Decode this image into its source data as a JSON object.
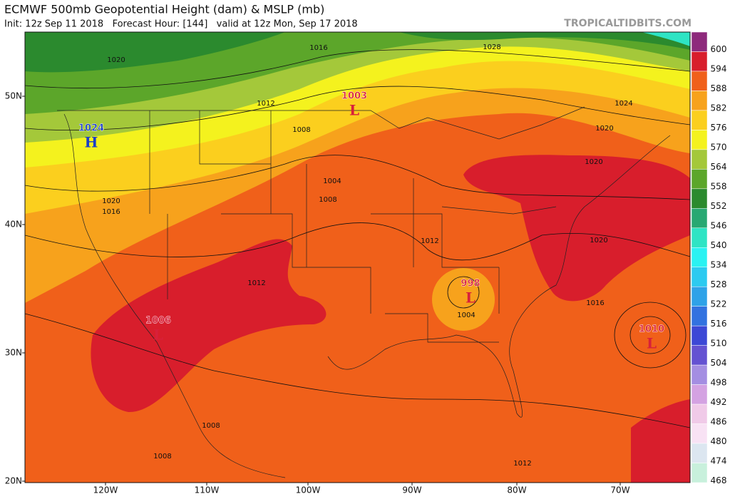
{
  "header": {
    "title": "ECMWF 500mb Geopotential Height (dam) & MSLP (mb)",
    "subtitle": "Init: 12z Sep 11 2018   Forecast Hour: [144]   valid at 12z Mon, Sep 17 2018",
    "brand": "TROPICALTIDBITS.COM"
  },
  "colorbar": {
    "labels": [
      600,
      594,
      588,
      582,
      576,
      570,
      564,
      558,
      552,
      546,
      540,
      534,
      528,
      522,
      516,
      510,
      504,
      498,
      492,
      486,
      480,
      474,
      468
    ],
    "colors": [
      "#8e2a7c",
      "#d81e2c",
      "#f0601a",
      "#f7a21c",
      "#fbcf1e",
      "#f4f21e",
      "#a4c83a",
      "#5ca62a",
      "#2b8a2e",
      "#28a872",
      "#2ee4c4",
      "#2af2f2",
      "#2ccaf0",
      "#2ea2e8",
      "#3272e0",
      "#3c48d6",
      "#6452d2",
      "#a48ee2",
      "#d4a2e2",
      "#f0cae8",
      "#f8e2f4",
      "#dce6f0",
      "#c8f0dc"
    ]
  },
  "lat_labels": [
    "50N",
    "40N",
    "30N",
    "20N"
  ],
  "lon_labels": [
    "120W",
    "110W",
    "100W",
    "90W",
    "80W",
    "70W"
  ],
  "pressure_centers": [
    {
      "value": "1024",
      "type": "H"
    },
    {
      "value": "1003",
      "type": "L"
    },
    {
      "value": "998",
      "type": "L"
    },
    {
      "value": "1006",
      "type": "L"
    },
    {
      "value": "1010",
      "type": "L"
    }
  ],
  "isobar_labels": [
    "1020",
    "1016",
    "1028",
    "1012",
    "1008",
    "1004",
    "1008",
    "1020",
    "1016",
    "1012",
    "1012",
    "1004",
    "1024",
    "1020",
    "1020",
    "1020",
    "1016",
    "1008",
    "1008",
    "1012"
  ]
}
